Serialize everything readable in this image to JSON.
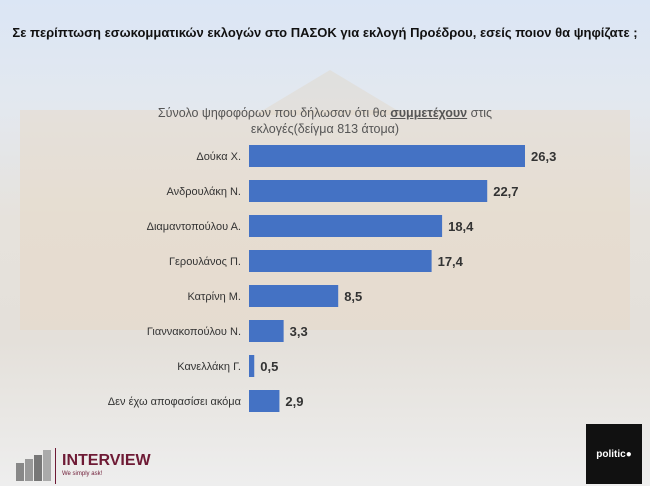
{
  "chart_data": {
    "type": "bar",
    "orientation": "horizontal",
    "title": "Σε περίπτωση εσωκομματικών εκλογών στο ΠΑΣΟΚ για εκλογή Προέδρου, εσείς ποιον θα ψηφίζατε ;",
    "subtitle_pre": "Σύνολο ψηφοφόρων που δήλωσαν ότι θα ",
    "subtitle_em": "συμμετέχουν",
    "subtitle_post": " στις εκλογές(δείγμα 813 άτομα)",
    "categories": [
      "Δούκα Χ.",
      "Ανδρουλάκη Ν.",
      "Διαμαντοπούλου Α.",
      "Γερουλάνος Π.",
      "Κατρίνη Μ.",
      "Γιαννακοπούλου Ν.",
      "Κανελλάκη Γ.",
      "Δεν έχω αποφασίσει ακόμα"
    ],
    "values": [
      26.3,
      22.7,
      18.4,
      17.4,
      8.5,
      3.3,
      0.5,
      2.9
    ],
    "data_labels": [
      "26,3",
      "22,7",
      "18,4",
      "17,4",
      "8,5",
      "3,3",
      "0,5",
      "2,9"
    ],
    "bar_color": "#4472c4",
    "grid": false
  },
  "logos": {
    "interview_name": "INTERVIEW",
    "interview_tag": "We simply ask!",
    "politico": "politic●"
  }
}
